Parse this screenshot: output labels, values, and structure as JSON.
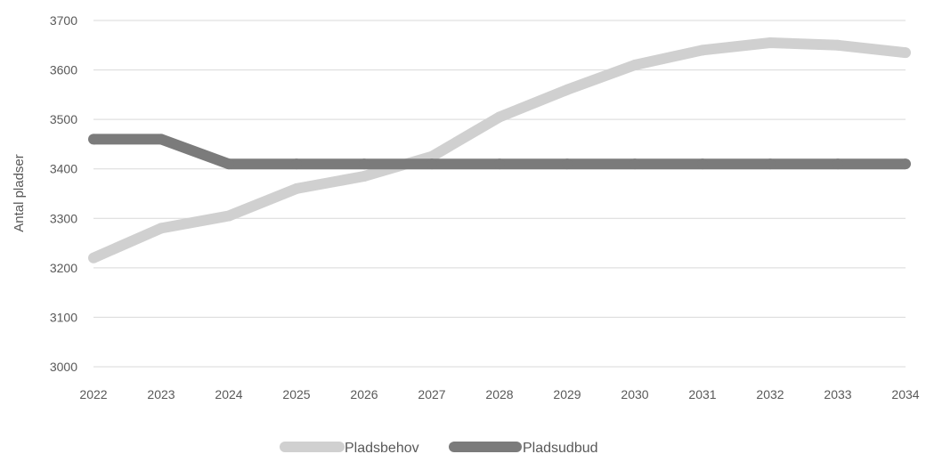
{
  "chart_data": {
    "type": "line",
    "title": "",
    "xlabel": "",
    "ylabel": "Antal pladser",
    "x": [
      "2022",
      "2023",
      "2024",
      "2025",
      "2026",
      "2027",
      "2028",
      "2029",
      "2030",
      "2031",
      "2032",
      "2033",
      "2034"
    ],
    "yticks": [
      "3000",
      "3100",
      "3200",
      "3300",
      "3400",
      "3500",
      "3600",
      "3700"
    ],
    "ylim": [
      3000,
      3700
    ],
    "grid": true,
    "legend_position": "bottom",
    "series": [
      {
        "name": "Pladsbehov",
        "color": "#d0d0d0",
        "values": [
          3220,
          3280,
          3305,
          3360,
          3385,
          3425,
          3505,
          3560,
          3610,
          3640,
          3655,
          3650,
          3635
        ]
      },
      {
        "name": "Pladsudbud",
        "color": "#7b7b7b",
        "values": [
          3460,
          3460,
          3410,
          3410,
          3410,
          3410,
          3410,
          3410,
          3410,
          3410,
          3410,
          3410,
          3410
        ]
      }
    ]
  }
}
